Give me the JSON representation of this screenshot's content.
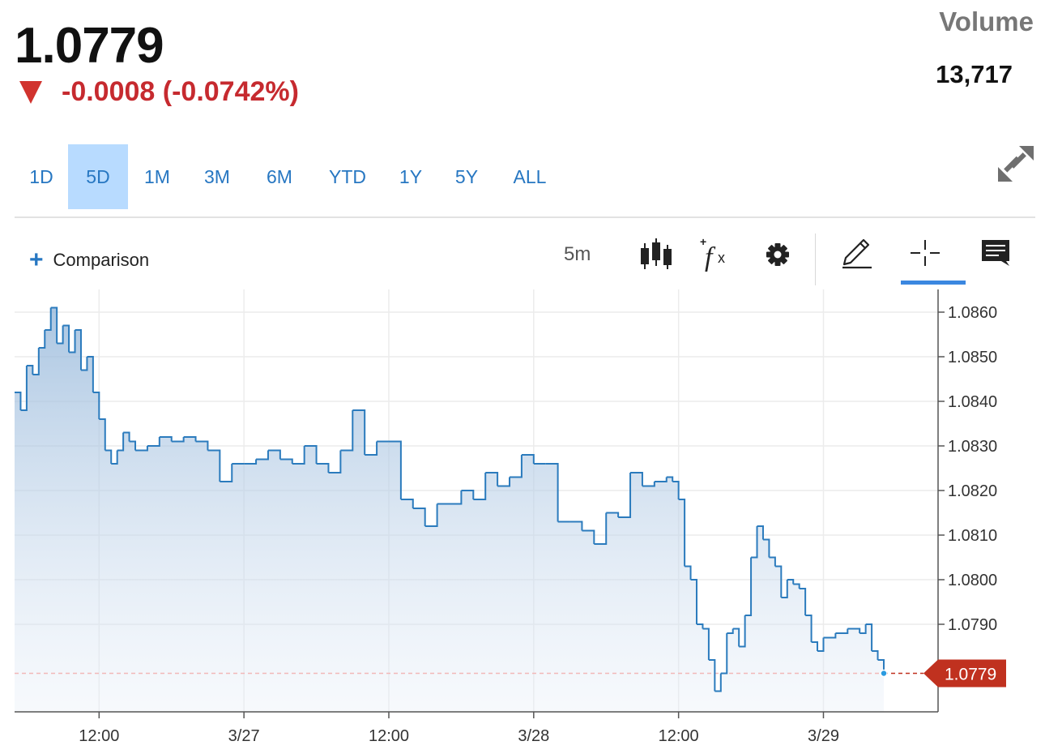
{
  "quote": {
    "price": "1.0779",
    "change": "-0.0008 (-0.0742%)",
    "direction": "down",
    "volume_label": "Volume",
    "volume_value": "13,717"
  },
  "ranges": {
    "tabs": [
      "1D",
      "5D",
      "1M",
      "3M",
      "6M",
      "YTD",
      "1Y",
      "5Y",
      "ALL"
    ],
    "active": "5D"
  },
  "toolbar": {
    "comparison_label": "Comparison",
    "interval": "5m",
    "icons": [
      "candlestick-icon",
      "studies-fx-icon",
      "settings-gear-icon",
      "draw-pencil-icon",
      "crosshair-icon",
      "comment-icon"
    ],
    "active_tool": "crosshair-icon"
  },
  "colors": {
    "accent": "#2777c2",
    "line": "#2b7bbd",
    "down": "#c62a2f",
    "tab_active_bg": "#b8dbff",
    "last_price_tag": "#c0311f"
  },
  "chart_data": {
    "type": "area",
    "title": "",
    "xlabel": "",
    "ylabel": "",
    "x_ticks": [
      "12:00",
      "3/27",
      "12:00",
      "3/28",
      "12:00",
      "3/29"
    ],
    "y_ticks": [
      "1.0860",
      "1.0850",
      "1.0840",
      "1.0830",
      "1.0820",
      "1.0810",
      "1.0800",
      "1.0790"
    ],
    "ylim": [
      1.077,
      1.0865
    ],
    "last_price": 1.0779,
    "last_price_label": "1.0779",
    "series": [
      {
        "points": [
          [
            "3/26 05:00",
            1.0842
          ],
          [
            "3/26 05:30",
            1.0838
          ],
          [
            "3/26 06:00",
            1.0848
          ],
          [
            "3/26 06:30",
            1.0846
          ],
          [
            "3/26 07:00",
            1.0852
          ],
          [
            "3/26 07:30",
            1.0856
          ],
          [
            "3/26 08:00",
            1.0861
          ],
          [
            "3/26 08:30",
            1.0853
          ],
          [
            "3/26 09:00",
            1.0857
          ],
          [
            "3/26 09:30",
            1.0851
          ],
          [
            "3/26 10:00",
            1.0856
          ],
          [
            "3/26 10:30",
            1.0847
          ],
          [
            "3/26 11:00",
            1.085
          ],
          [
            "3/26 11:30",
            1.0842
          ],
          [
            "3/26 12:00",
            1.0836
          ],
          [
            "3/26 12:30",
            1.0829
          ],
          [
            "3/26 13:00",
            1.0826
          ],
          [
            "3/26 13:30",
            1.0829
          ],
          [
            "3/26 14:00",
            1.0833
          ],
          [
            "3/26 14:30",
            1.0831
          ],
          [
            "3/26 15:00",
            1.0829
          ],
          [
            "3/26 16:00",
            1.083
          ],
          [
            "3/26 17:00",
            1.0832
          ],
          [
            "3/26 18:00",
            1.0831
          ],
          [
            "3/26 19:00",
            1.0832
          ],
          [
            "3/26 20:00",
            1.0831
          ],
          [
            "3/26 21:00",
            1.0829
          ],
          [
            "3/26 22:00",
            1.0822
          ],
          [
            "3/26 23:00",
            1.0826
          ],
          [
            "3/27 00:00",
            1.0826
          ],
          [
            "3/27 01:00",
            1.0827
          ],
          [
            "3/27 02:00",
            1.0829
          ],
          [
            "3/27 03:00",
            1.0827
          ],
          [
            "3/27 04:00",
            1.0826
          ],
          [
            "3/27 05:00",
            1.083
          ],
          [
            "3/27 06:00",
            1.0826
          ],
          [
            "3/27 07:00",
            1.0824
          ],
          [
            "3/27 08:00",
            1.0829
          ],
          [
            "3/27 09:00",
            1.0838
          ],
          [
            "3/27 10:00",
            1.0828
          ],
          [
            "3/27 11:00",
            1.0831
          ],
          [
            "3/27 12:00",
            1.0831
          ],
          [
            "3/27 13:00",
            1.0818
          ],
          [
            "3/27 14:00",
            1.0816
          ],
          [
            "3/27 15:00",
            1.0812
          ],
          [
            "3/27 16:00",
            1.0817
          ],
          [
            "3/27 17:00",
            1.0817
          ],
          [
            "3/27 18:00",
            1.082
          ],
          [
            "3/27 19:00",
            1.0818
          ],
          [
            "3/27 20:00",
            1.0824
          ],
          [
            "3/27 21:00",
            1.0821
          ],
          [
            "3/27 22:00",
            1.0823
          ],
          [
            "3/27 23:00",
            1.0828
          ],
          [
            "3/28 00:00",
            1.0826
          ],
          [
            "3/28 01:00",
            1.0826
          ],
          [
            "3/28 02:00",
            1.0813
          ],
          [
            "3/28 03:00",
            1.0813
          ],
          [
            "3/28 04:00",
            1.0811
          ],
          [
            "3/28 05:00",
            1.0808
          ],
          [
            "3/28 06:00",
            1.0815
          ],
          [
            "3/28 07:00",
            1.0814
          ],
          [
            "3/28 08:00",
            1.0824
          ],
          [
            "3/28 09:00",
            1.0821
          ],
          [
            "3/28 10:00",
            1.0822
          ],
          [
            "3/28 11:00",
            1.0823
          ],
          [
            "3/28 11:30",
            1.0822
          ],
          [
            "3/28 12:00",
            1.0818
          ],
          [
            "3/28 12:30",
            1.0803
          ],
          [
            "3/28 13:00",
            1.08
          ],
          [
            "3/28 13:30",
            1.079
          ],
          [
            "3/28 14:00",
            1.0789
          ],
          [
            "3/28 14:30",
            1.0782
          ],
          [
            "3/28 15:00",
            1.0775
          ],
          [
            "3/28 15:30",
            1.0779
          ],
          [
            "3/28 16:00",
            1.0788
          ],
          [
            "3/28 16:30",
            1.0789
          ],
          [
            "3/28 17:00",
            1.0785
          ],
          [
            "3/28 17:30",
            1.0792
          ],
          [
            "3/28 18:00",
            1.0805
          ],
          [
            "3/28 18:30",
            1.0812
          ],
          [
            "3/28 19:00",
            1.0809
          ],
          [
            "3/28 19:30",
            1.0805
          ],
          [
            "3/28 20:00",
            1.0803
          ],
          [
            "3/28 20:30",
            1.0796
          ],
          [
            "3/28 21:00",
            1.08
          ],
          [
            "3/28 21:30",
            1.0799
          ],
          [
            "3/28 22:00",
            1.0798
          ],
          [
            "3/28 22:30",
            1.0792
          ],
          [
            "3/28 23:00",
            1.0786
          ],
          [
            "3/28 23:30",
            1.0784
          ],
          [
            "3/29 00:00",
            1.0787
          ],
          [
            "3/29 01:00",
            1.0788
          ],
          [
            "3/29 02:00",
            1.0789
          ],
          [
            "3/29 03:00",
            1.0788
          ],
          [
            "3/29 03:30",
            1.079
          ],
          [
            "3/29 04:00",
            1.0784
          ],
          [
            "3/29 04:30",
            1.0782
          ],
          [
            "3/29 05:00",
            1.0779
          ]
        ]
      }
    ]
  }
}
